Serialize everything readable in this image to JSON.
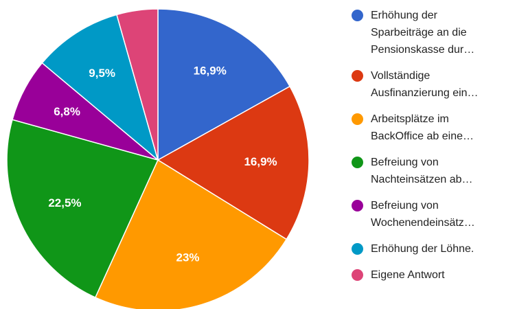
{
  "chart_data": {
    "type": "pie",
    "series": [
      {
        "name": "Erhöhung der\nSparbeiträge an die\nPensionskasse dur…",
        "color": "#3366cc"
      },
      {
        "name": "Vollständige\nAusfinanzierung ein…",
        "color": "#dc3912"
      },
      {
        "name": "Arbeitsplätze im\nBackOffice ab eine…",
        "color": "#ff9900"
      },
      {
        "name": "Befreiung von\nNachteinsätzen ab…",
        "color": "#109618"
      },
      {
        "name": "Befreiung von\nWochenendeinsätz…",
        "color": "#990099"
      },
      {
        "name": "Erhöhung der Löhne.",
        "color": "#0099c6"
      },
      {
        "name": "Eigene Antwort",
        "color": "#dd4477"
      }
    ],
    "values": [
      16.9,
      16.9,
      23,
      22.5,
      6.8,
      9.5,
      4.4
    ],
    "value_labels": [
      "16,9%",
      "16,9%",
      "23%",
      "22,5%",
      "6,8%",
      "9,5%",
      null
    ],
    "legend": "right"
  }
}
